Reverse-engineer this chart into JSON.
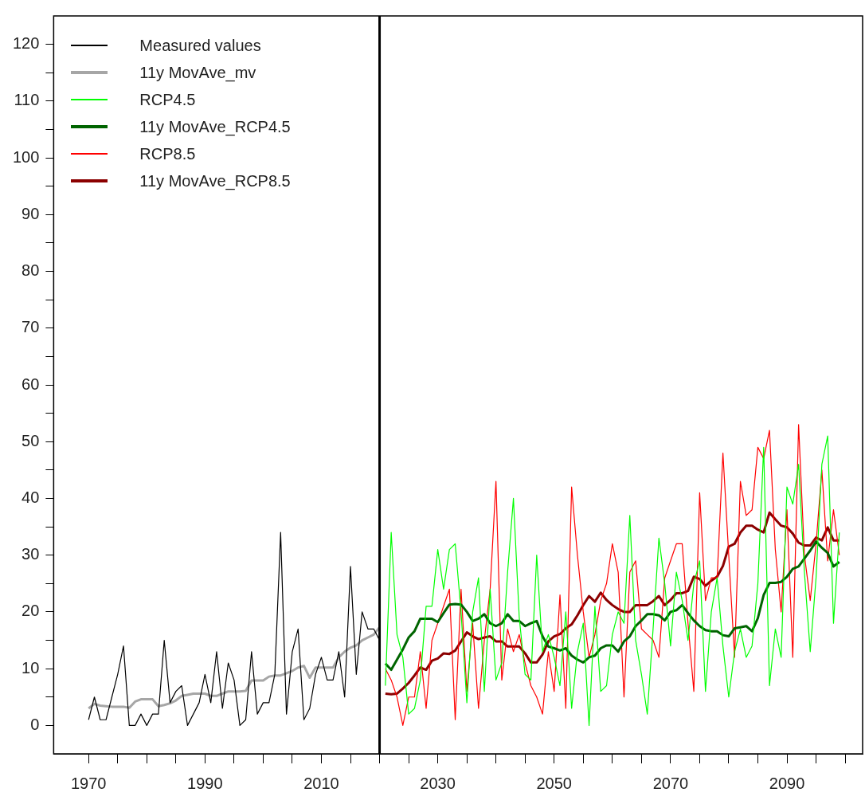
{
  "chart_data": {
    "type": "line",
    "xlim": [
      1964,
      2103
    ],
    "xticks": [
      {
        "value": 1970,
        "label": "1970"
      },
      {
        "value": 1975,
        "label": null
      },
      {
        "value": 1980,
        "label": null
      },
      {
        "value": 1985,
        "label": null
      },
      {
        "value": 1990,
        "label": "1990"
      },
      {
        "value": 1995,
        "label": null
      },
      {
        "value": 2000,
        "label": null
      },
      {
        "value": 2005,
        "label": null
      },
      {
        "value": 2010,
        "label": "2010"
      },
      {
        "value": 2015,
        "label": null
      },
      {
        "value": 2020,
        "label": null
      },
      {
        "value": 2025,
        "label": null
      },
      {
        "value": 2030,
        "label": "2030"
      },
      {
        "value": 2035,
        "label": null
      },
      {
        "value": 2040,
        "label": null
      },
      {
        "value": 2045,
        "label": null
      },
      {
        "value": 2050,
        "label": "2050"
      },
      {
        "value": 2055,
        "label": null
      },
      {
        "value": 2060,
        "label": null
      },
      {
        "value": 2065,
        "label": null
      },
      {
        "value": 2070,
        "label": "2070"
      },
      {
        "value": 2075,
        "label": null
      },
      {
        "value": 2080,
        "label": null
      },
      {
        "value": 2085,
        "label": null
      },
      {
        "value": 2090,
        "label": "2090"
      },
      {
        "value": 2095,
        "label": null
      },
      {
        "value": 2100,
        "label": null
      }
    ],
    "ylim": [
      -5,
      125
    ],
    "yticks": [
      0,
      {
        "value": 5,
        "label": null
      },
      10,
      {
        "value": 15,
        "label": null
      },
      20,
      {
        "value": 25,
        "label": null
      },
      30,
      {
        "value": 35,
        "label": null
      },
      40,
      {
        "value": 45,
        "label": null
      },
      50,
      {
        "value": 55,
        "label": null
      },
      60,
      {
        "value": 65,
        "label": null
      },
      70,
      {
        "value": 75,
        "label": null
      },
      80,
      {
        "value": 85,
        "label": null
      },
      90,
      {
        "value": 95,
        "label": null
      },
      100,
      {
        "value": 105,
        "label": null
      },
      110,
      {
        "value": 115,
        "label": null
      },
      120
    ],
    "grid": false,
    "legend": "top left",
    "marker": "none",
    "line_style": "solid",
    "ref_lines": [
      {
        "axis": "x",
        "value": 2020,
        "color": "#000000"
      }
    ],
    "series": [
      {
        "name": "Measured values",
        "color": "#000000",
        "x": [
          1970,
          1971,
          1972,
          1973,
          1974,
          1975,
          1976,
          1977,
          1978,
          1979,
          1980,
          1981,
          1982,
          1983,
          1984,
          1985,
          1986,
          1987,
          1988,
          1989,
          1990,
          1991,
          1992,
          1993,
          1994,
          1995,
          1996,
          1997,
          1998,
          1999,
          2000,
          2001,
          2002,
          2003,
          2004,
          2005,
          2006,
          2007,
          2008,
          2009,
          2010,
          2011,
          2012,
          2013,
          2014,
          2015,
          2016,
          2017,
          2018,
          2019,
          2020
        ],
        "values": [
          1,
          5,
          1,
          1,
          5,
          9,
          14,
          0,
          0,
          2,
          0,
          2,
          2,
          15,
          4,
          6,
          7,
          0,
          2,
          4,
          9,
          4,
          13,
          3,
          11,
          8,
          0,
          1,
          13,
          2,
          4,
          4,
          9,
          34,
          2,
          13,
          17,
          1,
          3,
          9,
          12,
          8,
          8,
          13,
          5,
          28,
          9,
          20,
          17,
          17,
          15
        ]
      },
      {
        "name": "11y MovAve_mv",
        "color": "#a6a6a6",
        "x": [
          1970,
          1971,
          1972,
          1973,
          1974,
          1975,
          1976,
          1977,
          1978,
          1979,
          1980,
          1981,
          1982,
          1983,
          1984,
          1985,
          1986,
          1987,
          1988,
          1989,
          1990,
          1991,
          1992,
          1993,
          1994,
          1995,
          1996,
          1997,
          1998,
          1999,
          2000,
          2001,
          2002,
          2003,
          2004,
          2005,
          2006,
          2007,
          2008,
          2009,
          2010,
          2011,
          2012,
          2013,
          2014,
          2015,
          2016,
          2017,
          2018,
          2019,
          2020
        ],
        "values": [
          3,
          3.8,
          3.5,
          3.4,
          3.3,
          3.3,
          3.3,
          3.1,
          4.2,
          4.6,
          4.6,
          4.6,
          3.4,
          3.6,
          3.9,
          4.4,
          5.2,
          5.4,
          5.6,
          5.6,
          5.6,
          5.2,
          5.2,
          5.6,
          6,
          6,
          6,
          6.1,
          7.9,
          7.9,
          7.9,
          8.6,
          8.8,
          8.8,
          9.2,
          9.6,
          10.2,
          10.5,
          8.4,
          10.2,
          10.2,
          10.2,
          10.2,
          12,
          13,
          13.7,
          14.1,
          15,
          15.5,
          16,
          17.3
        ]
      },
      {
        "name": "RCP4.5",
        "color": "#00ff00",
        "x": [
          2021,
          2022,
          2023,
          2024,
          2025,
          2026,
          2027,
          2028,
          2029,
          2030,
          2031,
          2032,
          2033,
          2034,
          2035,
          2036,
          2037,
          2038,
          2039,
          2040,
          2041,
          2042,
          2043,
          2044,
          2045,
          2046,
          2047,
          2048,
          2049,
          2050,
          2051,
          2052,
          2053,
          2054,
          2055,
          2056,
          2057,
          2058,
          2059,
          2060,
          2061,
          2062,
          2063,
          2064,
          2065,
          2066,
          2067,
          2068,
          2069,
          2070,
          2071,
          2072,
          2073,
          2074,
          2075,
          2076,
          2077,
          2078,
          2079,
          2080,
          2081,
          2082,
          2083,
          2084,
          2085,
          2086,
          2087,
          2088,
          2089,
          2090,
          2091,
          2092,
          2093,
          2094,
          2095,
          2096,
          2097,
          2098,
          2099
        ],
        "values": [
          7,
          34,
          16,
          12,
          2,
          3,
          8,
          21,
          21,
          31,
          24,
          31,
          32,
          20,
          4,
          20,
          26,
          6,
          24,
          8,
          11,
          27,
          40,
          19,
          9,
          8,
          30,
          13,
          16,
          12,
          7,
          20,
          3,
          13,
          18,
          0,
          21,
          6,
          7,
          16,
          20,
          18,
          37,
          15,
          9,
          2,
          17,
          33,
          25,
          14,
          27,
          22,
          15,
          25,
          29,
          6,
          20,
          26,
          14,
          5,
          13,
          17,
          12,
          14,
          25,
          49,
          7,
          17,
          12,
          42,
          39,
          46,
          27,
          13,
          26,
          46,
          51,
          18,
          34
        ]
      },
      {
        "name": "11y MovAve_RCP4.5",
        "color": "#006400",
        "x": [
          2021,
          2022,
          2023,
          2024,
          2025,
          2026,
          2027,
          2028,
          2029,
          2030,
          2031,
          2032,
          2033,
          2034,
          2035,
          2036,
          2037,
          2038,
          2039,
          2040,
          2041,
          2042,
          2043,
          2044,
          2045,
          2046,
          2047,
          2048,
          2049,
          2050,
          2051,
          2052,
          2053,
          2054,
          2055,
          2056,
          2057,
          2058,
          2059,
          2060,
          2061,
          2062,
          2063,
          2064,
          2065,
          2066,
          2067,
          2068,
          2069,
          2070,
          2071,
          2072,
          2073,
          2074,
          2075,
          2076,
          2077,
          2078,
          2079,
          2080,
          2081,
          2082,
          2083,
          2084,
          2085,
          2086,
          2087,
          2088,
          2089,
          2090,
          2091,
          2092,
          2093,
          2094,
          2095,
          2096,
          2097,
          2098,
          2099
        ],
        "values": [
          10.9,
          9.8,
          11.6,
          13.4,
          15.5,
          16.6,
          18.8,
          18.8,
          18.8,
          18.2,
          19.8,
          21.3,
          21.4,
          21.3,
          20,
          18.4,
          18.8,
          19.6,
          18,
          17.5,
          18,
          19.6,
          18.4,
          18.4,
          17.5,
          18,
          18.4,
          15.7,
          13.9,
          13.6,
          13.2,
          13.6,
          12.3,
          11.6,
          11.1,
          12,
          12.3,
          13.6,
          14.1,
          14.1,
          13,
          14.8,
          15.7,
          17.5,
          18.5,
          19.6,
          19.6,
          19.4,
          18.5,
          20,
          20.3,
          21.2,
          19.8,
          18.5,
          17.5,
          16.8,
          16.6,
          16.6,
          15.9,
          15.7,
          17.1,
          17.3,
          17.5,
          16.6,
          18.9,
          23,
          25.1,
          25.1,
          25.3,
          26.2,
          27.6,
          28,
          29.4,
          30.8,
          32.4,
          31.3,
          30.4,
          28,
          28.8
        ]
      },
      {
        "name": "RCP8.5",
        "color": "#ff0000",
        "x": [
          2021,
          2022,
          2023,
          2024,
          2025,
          2026,
          2027,
          2028,
          2029,
          2030,
          2031,
          2032,
          2033,
          2034,
          2035,
          2036,
          2037,
          2038,
          2039,
          2040,
          2041,
          2042,
          2043,
          2044,
          2045,
          2046,
          2047,
          2048,
          2049,
          2050,
          2051,
          2052,
          2053,
          2054,
          2055,
          2056,
          2057,
          2058,
          2059,
          2060,
          2061,
          2062,
          2063,
          2064,
          2065,
          2066,
          2067,
          2068,
          2069,
          2070,
          2071,
          2072,
          2073,
          2074,
          2075,
          2076,
          2077,
          2078,
          2079,
          2080,
          2081,
          2082,
          2083,
          2084,
          2085,
          2086,
          2087,
          2088,
          2089,
          2090,
          2091,
          2092,
          2093,
          2094,
          2095,
          2096,
          2097,
          2098,
          2099
        ],
        "values": [
          10,
          8,
          5,
          0,
          5,
          5,
          13,
          3,
          15,
          18,
          21,
          24,
          1,
          24,
          6,
          18,
          3,
          15,
          24,
          43,
          8,
          17,
          13,
          16,
          11,
          7,
          5,
          2,
          13,
          6,
          23,
          3,
          42,
          30,
          20,
          12,
          16,
          22,
          25,
          32,
          27,
          5,
          27,
          29,
          17,
          16,
          15,
          12,
          26,
          29,
          32,
          32,
          18,
          6,
          41,
          22,
          26,
          26,
          48,
          30,
          12,
          43,
          37,
          38,
          49,
          47,
          52,
          31,
          20,
          38,
          12,
          53,
          30,
          22,
          32,
          45,
          29,
          38,
          30
        ]
      },
      {
        "name": "11y MovAve_RCP8.5",
        "color": "#8b0000",
        "x": [
          2021,
          2022,
          2023,
          2024,
          2025,
          2026,
          2027,
          2028,
          2029,
          2030,
          2031,
          2032,
          2033,
          2034,
          2035,
          2036,
          2037,
          2038,
          2039,
          2040,
          2041,
          2042,
          2043,
          2044,
          2045,
          2046,
          2047,
          2048,
          2049,
          2050,
          2051,
          2052,
          2053,
          2054,
          2055,
          2056,
          2057,
          2058,
          2059,
          2060,
          2061,
          2062,
          2063,
          2064,
          2065,
          2066,
          2067,
          2068,
          2069,
          2070,
          2071,
          2072,
          2073,
          2074,
          2075,
          2076,
          2077,
          2078,
          2079,
          2080,
          2081,
          2082,
          2083,
          2084,
          2085,
          2086,
          2087,
          2088,
          2089,
          2090,
          2091,
          2092,
          2093,
          2094,
          2095,
          2096,
          2097,
          2098,
          2099
        ],
        "values": [
          5.6,
          5.5,
          5.6,
          6.5,
          7.5,
          8.8,
          10.2,
          9.8,
          11.4,
          11.8,
          12.7,
          12.6,
          13.2,
          14.8,
          16.4,
          15.7,
          15.2,
          15.5,
          15.7,
          14.8,
          14.8,
          13.9,
          13.9,
          13.9,
          12.7,
          11.1,
          11.1,
          12.5,
          14.8,
          15.7,
          16.1,
          17.1,
          17.8,
          19.4,
          21.2,
          22.8,
          21.8,
          23.4,
          22.1,
          21.2,
          20.5,
          20,
          20,
          21.2,
          21.2,
          21.2,
          21.9,
          22.8,
          21.2,
          22.1,
          23.3,
          23.3,
          23.7,
          26.2,
          25.8,
          24.6,
          25.5,
          26.2,
          28.1,
          31.5,
          32,
          34,
          35.2,
          35.2,
          34.5,
          34,
          37.5,
          36.3,
          35.2,
          34.9,
          33.8,
          32.2,
          31.7,
          31.7,
          33.1,
          32.6,
          34.9,
          32.6,
          32.6
        ]
      }
    ]
  }
}
